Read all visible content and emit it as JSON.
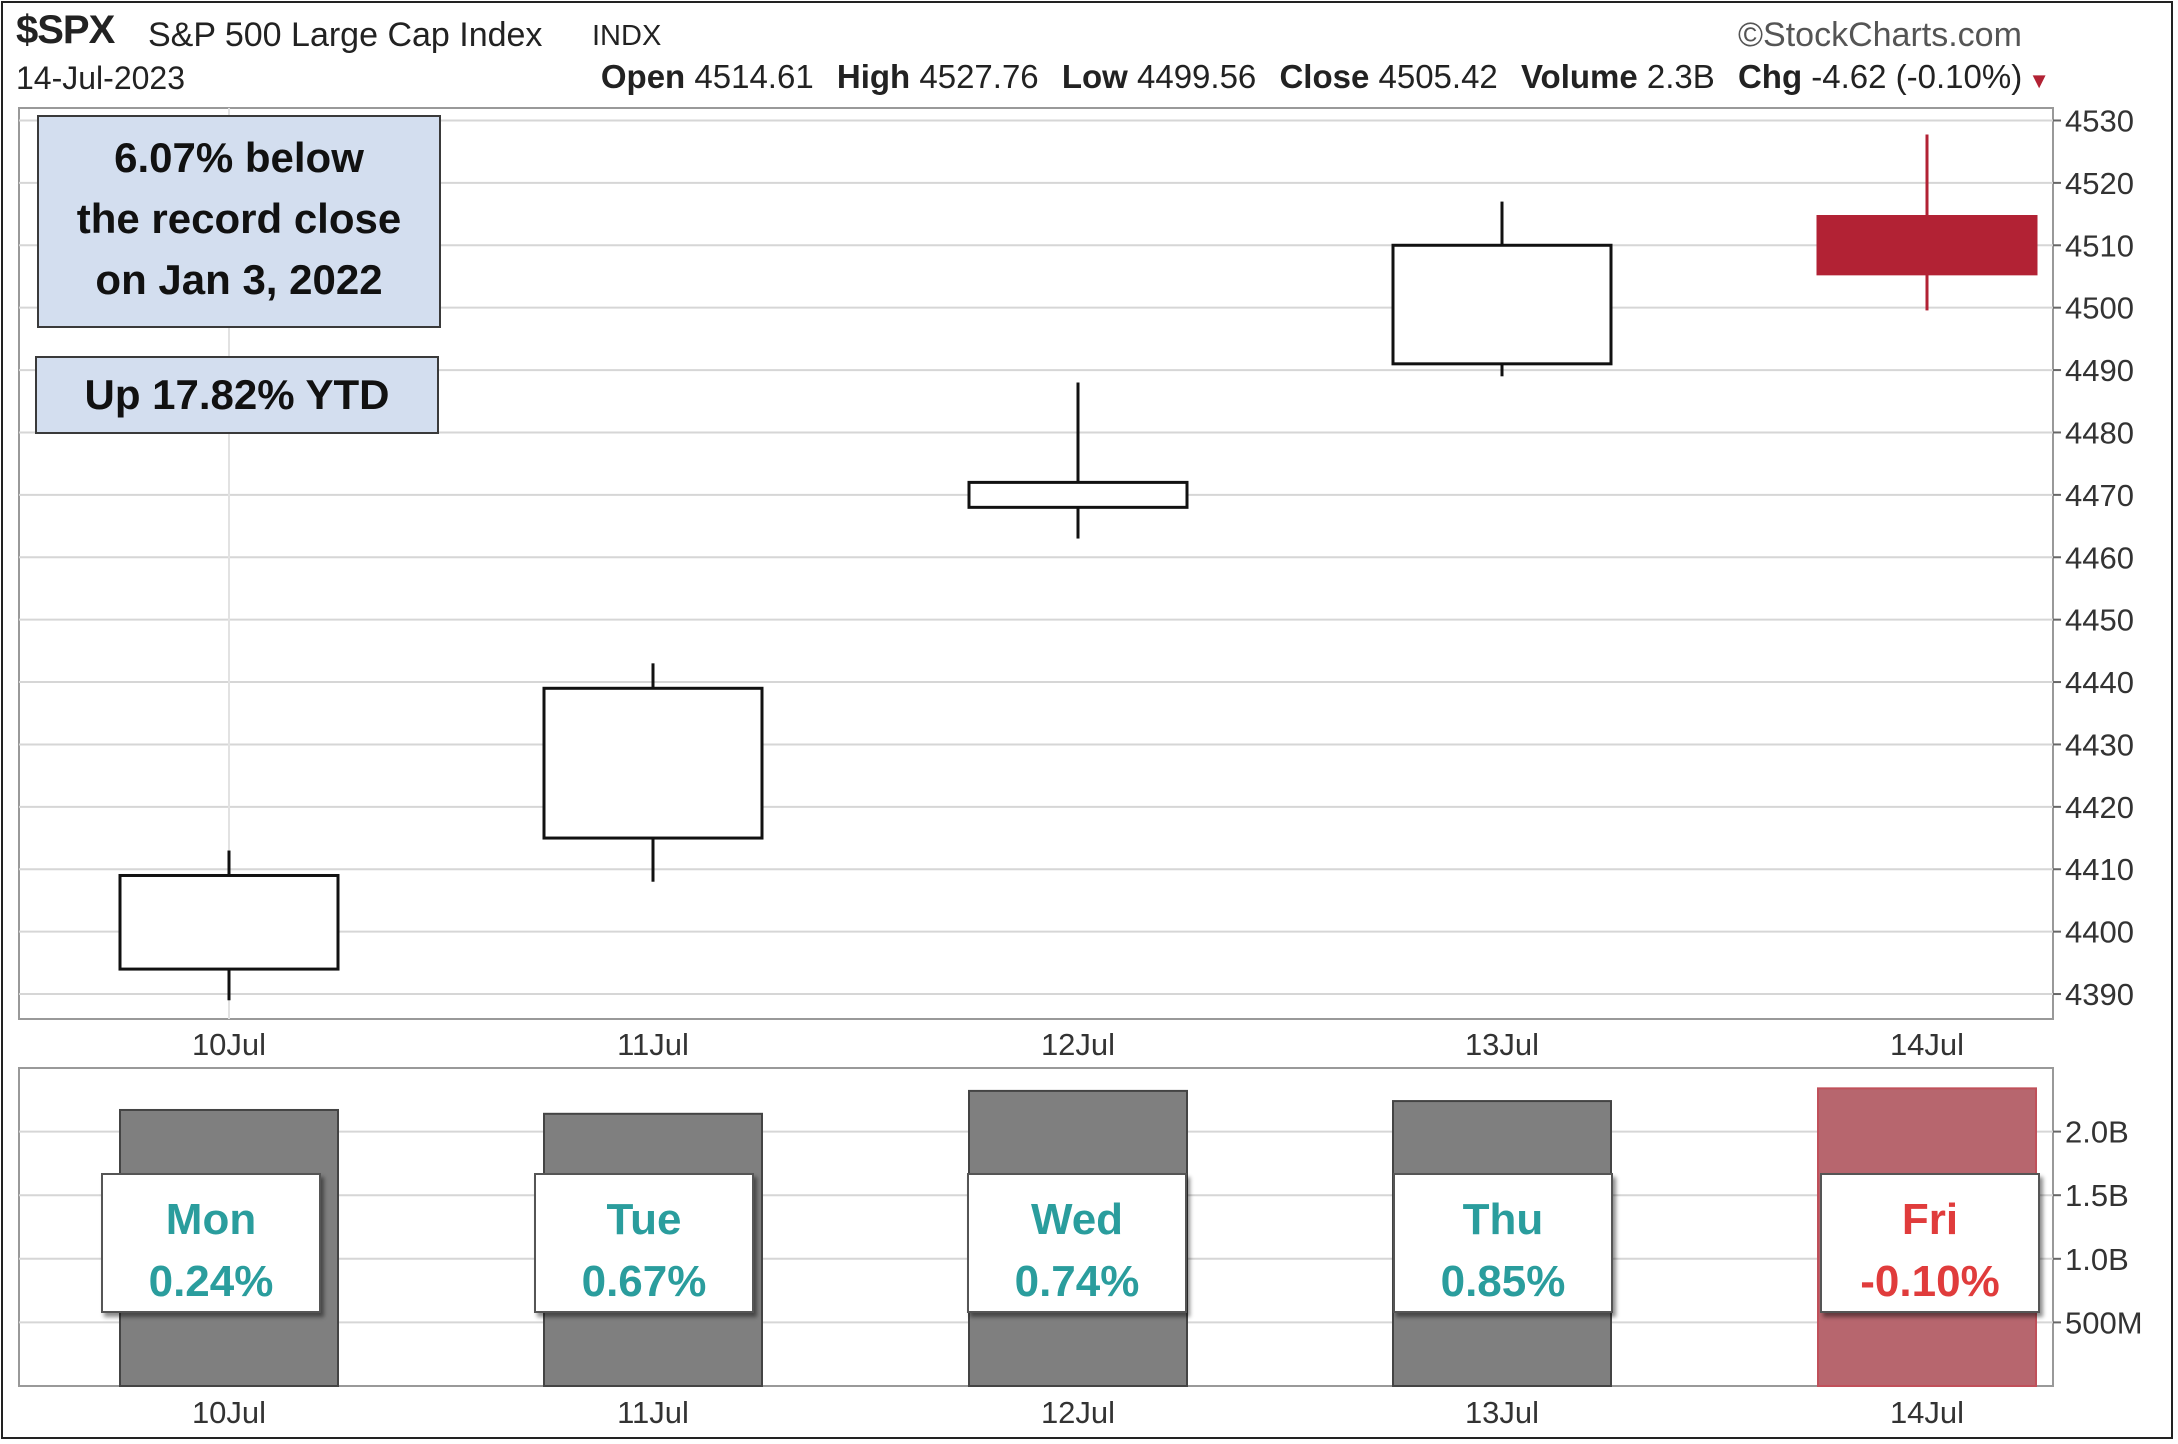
{
  "header": {
    "symbol": "$SPX",
    "name": "S&P 500 Large Cap Index",
    "exchange": "INDX",
    "date": "14-Jul-2023",
    "brand": "©StockCharts.com",
    "open_label": "Open",
    "open": "4514.61",
    "high_label": "High",
    "high": "4527.76",
    "low_label": "Low",
    "low": "4499.56",
    "close_label": "Close",
    "close": "4505.42",
    "volume_label": "Volume",
    "volume": "2.3B",
    "chg_label": "Chg",
    "chg": "-4.62 (-0.10%)"
  },
  "annotations": {
    "record_line1": "6.07% below",
    "record_line2": "the record close",
    "record_line3": "on Jan 3, 2022",
    "ytd": "Up 17.82% YTD"
  },
  "days": [
    {
      "day": "Mon",
      "pct": "0.24%",
      "color": "#2a9d9d"
    },
    {
      "day": "Tue",
      "pct": "0.67%",
      "color": "#2a9d9d"
    },
    {
      "day": "Wed",
      "pct": "0.74%",
      "color": "#2a9d9d"
    },
    {
      "day": "Thu",
      "pct": "0.85%",
      "color": "#2a9d9d"
    },
    {
      "day": "Fri",
      "pct": "-0.10%",
      "color": "#e03c3c"
    }
  ],
  "colors": {
    "up_body": "#ffffff",
    "down_body": "#b22234",
    "volume_up": "#7f7f7f",
    "volume_down": "#b7666e",
    "grid": "#d6d6d6"
  },
  "chart_data": [
    {
      "type": "candlestick",
      "categories": [
        "10Jul",
        "11Jul",
        "12Jul",
        "13Jul",
        "14Jul"
      ],
      "ohlc": [
        {
          "open": 4394,
          "high": 4413,
          "low": 4389,
          "close": 4409
        },
        {
          "open": 4415,
          "high": 4443,
          "low": 4408,
          "close": 4439
        },
        {
          "open": 4468,
          "high": 4488,
          "low": 4463,
          "close": 4472
        },
        {
          "open": 4491,
          "high": 4517,
          "low": 4489,
          "close": 4510
        },
        {
          "open": 4514.61,
          "high": 4527.76,
          "low": 4499.56,
          "close": 4505.42
        }
      ],
      "ylim": [
        4386,
        4532
      ],
      "yticks": [
        4390,
        4400,
        4410,
        4420,
        4430,
        4440,
        4450,
        4460,
        4470,
        4480,
        4490,
        4500,
        4510,
        4520,
        4530
      ],
      "grid": true
    },
    {
      "type": "bar",
      "categories": [
        "10Jul",
        "11Jul",
        "12Jul",
        "13Jul",
        "14Jul"
      ],
      "values": [
        2.17,
        2.14,
        2.32,
        2.24,
        2.34
      ],
      "ylim": [
        0,
        2.5
      ],
      "yticks": [
        0.5,
        1.0,
        1.5,
        2.0
      ],
      "ytick_labels": [
        "500M",
        "1.0B",
        "1.5B",
        "2.0B"
      ],
      "grid": true
    }
  ]
}
